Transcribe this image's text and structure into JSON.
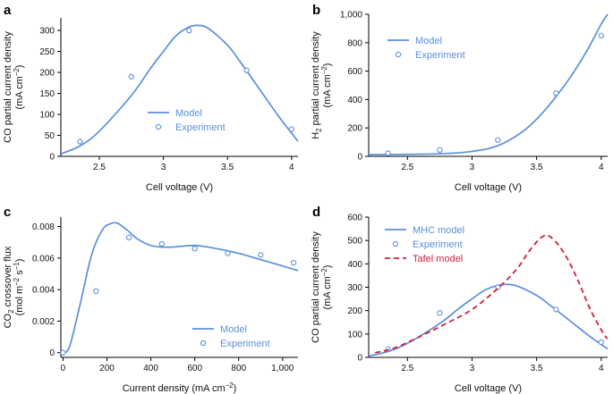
{
  "colors": {
    "model": "#5b8fd9",
    "tafel": "#d0213b",
    "axis": "#000000",
    "text": "#111111"
  },
  "chart_data": [
    {
      "panel": "a",
      "type": "line",
      "xlabel": "Cell voltage (V)",
      "ylabel_lines": [
        {
          "text": "CO partial current density"
        },
        {
          "pre": "(mA cm",
          "sup": "−2",
          "post": ")"
        }
      ],
      "xlim": [
        2.2,
        4.05
      ],
      "ylim": [
        0,
        330
      ],
      "xticks": [
        2.5,
        3,
        3.5,
        4
      ],
      "xtick_labels": [
        "2.5",
        "3",
        "3.5",
        "4"
      ],
      "yticks": [
        0,
        50,
        100,
        150,
        200,
        250,
        300
      ],
      "ytick_labels": [
        "0",
        "50",
        "100",
        "150",
        "200",
        "250",
        "300"
      ],
      "series": [
        {
          "name": "Model",
          "kind": "line",
          "x": [
            2.2,
            2.35,
            2.5,
            2.75,
            2.9,
            3.0,
            3.1,
            3.2,
            3.27,
            3.35,
            3.5,
            3.6,
            3.75,
            3.9,
            4.0,
            4.05
          ],
          "y": [
            6,
            25,
            60,
            145,
            210,
            250,
            288,
            308,
            312,
            305,
            265,
            225,
            160,
            95,
            55,
            36
          ]
        },
        {
          "name": "Experiment",
          "kind": "scatter",
          "x": [
            2.35,
            2.75,
            3.2,
            3.65,
            4.0
          ],
          "y": [
            35,
            190,
            300,
            205,
            65
          ]
        }
      ],
      "legend": "center-bottom"
    },
    {
      "panel": "b",
      "type": "line",
      "xlabel": "Cell voltage (V)",
      "ylabel_lines": [
        {
          "pre": "H",
          "sub": "2",
          "post": " partial current density"
        },
        {
          "pre": "(mA cm",
          "sup": "−2",
          "post": ")"
        }
      ],
      "xlim": [
        2.2,
        4.05
      ],
      "ylim": [
        0,
        1000
      ],
      "xticks": [
        2.5,
        3,
        3.5,
        4
      ],
      "xtick_labels": [
        "2.5",
        "3",
        "3.5",
        "4"
      ],
      "yticks": [
        0,
        200,
        400,
        600,
        800,
        1000
      ],
      "ytick_labels": [
        "0",
        "200",
        "400",
        "600",
        "800",
        "1,000"
      ],
      "series": [
        {
          "name": "Model",
          "kind": "line",
          "x": [
            2.2,
            2.5,
            2.8,
            3.0,
            3.2,
            3.4,
            3.55,
            3.7,
            3.8,
            3.9,
            4.0,
            4.05
          ],
          "y": [
            12,
            14,
            20,
            35,
            75,
            180,
            310,
            480,
            610,
            760,
            930,
            1000
          ]
        },
        {
          "name": "Experiment",
          "kind": "scatter",
          "x": [
            2.35,
            2.75,
            3.2,
            3.65,
            4.0
          ],
          "y": [
            22,
            45,
            115,
            445,
            850
          ]
        }
      ],
      "legend": "top-left"
    },
    {
      "panel": "c",
      "type": "line",
      "xlabel_parts": {
        "pre": "Current density (mA cm",
        "sup": "−2",
        "post": ")"
      },
      "ylabel_lines": [
        {
          "pre": "CO",
          "sub": "2",
          "post": " crossover flux"
        },
        {
          "pre": "(mol m",
          "sup": "−2",
          "mid": " s",
          "sup2": "−1",
          "post": ")"
        }
      ],
      "xlim": [
        -10,
        1070
      ],
      "ylim": [
        -0.0003,
        0.0086
      ],
      "xticks": [
        0,
        200,
        400,
        600,
        800,
        1000
      ],
      "xtick_labels": [
        "0",
        "200",
        "400",
        "600",
        "800",
        "1,000"
      ],
      "yticks": [
        0,
        0.002,
        0.004,
        0.006,
        0.008
      ],
      "ytick_labels": [
        "0",
        "0.002",
        "0.004",
        "0.006",
        "0.008"
      ],
      "series": [
        {
          "name": "Model",
          "kind": "line",
          "x": [
            0,
            30,
            80,
            130,
            180,
            220,
            250,
            290,
            340,
            400,
            450,
            500,
            600,
            700,
            800,
            900,
            1000,
            1070
          ],
          "y": [
            0,
            0.0004,
            0.0032,
            0.0062,
            0.0078,
            0.0082,
            0.0082,
            0.0078,
            0.0072,
            0.0068,
            0.0067,
            0.0067,
            0.0068,
            0.0066,
            0.0063,
            0.0059,
            0.0055,
            0.0052
          ]
        },
        {
          "name": "Experiment",
          "kind": "scatter",
          "x": [
            0,
            150,
            300,
            450,
            600,
            750,
            900,
            1050
          ],
          "y": [
            0,
            0.0039,
            0.0073,
            0.0069,
            0.0066,
            0.0063,
            0.0062,
            0.0057
          ]
        }
      ],
      "legend": "bottom-right"
    },
    {
      "panel": "d",
      "type": "line",
      "xlabel": "Cell voltage (V)",
      "ylabel_lines": [
        {
          "text": "CO partial current density"
        },
        {
          "pre": "(mA cm",
          "sup": "−2",
          "post": ")"
        }
      ],
      "xlim": [
        2.2,
        4.05
      ],
      "ylim": [
        0,
        600
      ],
      "xticks": [
        2.5,
        3,
        3.5,
        4
      ],
      "xtick_labels": [
        "2.5",
        "3",
        "3.5",
        "4"
      ],
      "yticks": [
        0,
        100,
        200,
        300,
        400,
        500,
        600
      ],
      "ytick_labels": [
        "0",
        "100",
        "200",
        "300",
        "400",
        "500",
        "600"
      ],
      "series": [
        {
          "name": "MHC model",
          "kind": "line",
          "x": [
            2.2,
            2.35,
            2.5,
            2.75,
            2.9,
            3.0,
            3.1,
            3.2,
            3.27,
            3.35,
            3.5,
            3.6,
            3.75,
            3.9,
            4.0,
            4.05
          ],
          "y": [
            6,
            25,
            60,
            145,
            210,
            250,
            288,
            308,
            312,
            305,
            265,
            225,
            160,
            95,
            55,
            36
          ]
        },
        {
          "name": "Experiment",
          "kind": "scatter",
          "x": [
            2.35,
            2.75,
            3.2,
            3.65,
            4.0
          ],
          "y": [
            35,
            190,
            300,
            205,
            65
          ]
        },
        {
          "name": "Tafel model",
          "kind": "dashed",
          "x": [
            2.25,
            2.4,
            2.6,
            2.8,
            3.0,
            3.2,
            3.35,
            3.45,
            3.55,
            3.62,
            3.72,
            3.82,
            3.92,
            4.02,
            4.05
          ],
          "y": [
            20,
            40,
            90,
            145,
            205,
            295,
            380,
            460,
            518,
            510,
            440,
            330,
            200,
            100,
            80
          ]
        }
      ],
      "legend": "top-left"
    }
  ]
}
